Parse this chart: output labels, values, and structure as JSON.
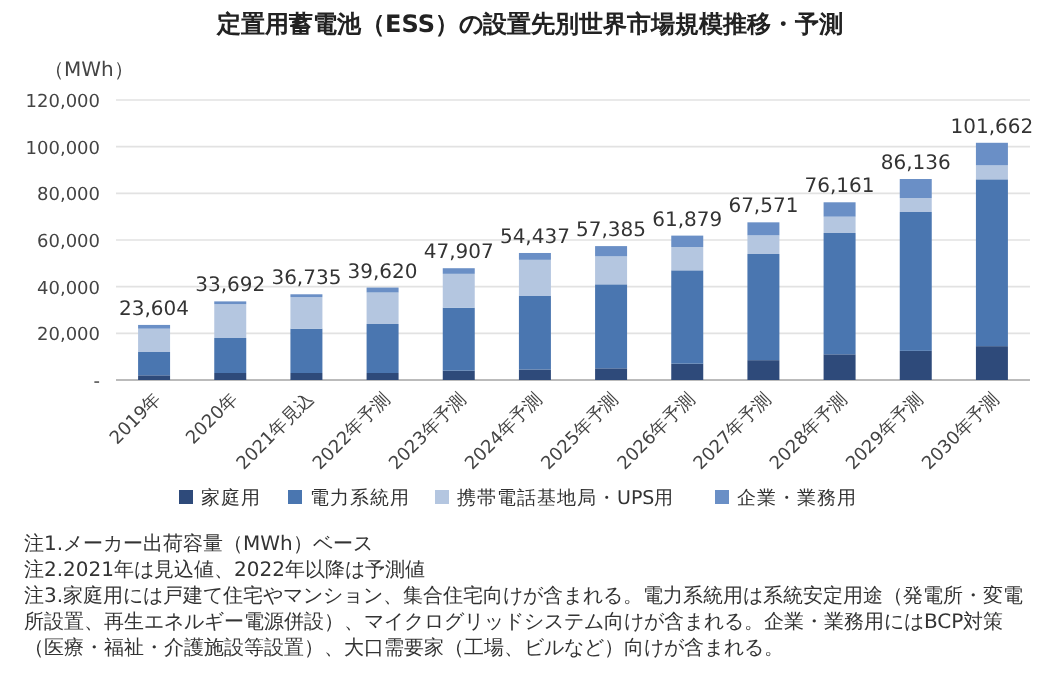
{
  "chart_data": {
    "type": "bar",
    "title": "定置用蓄電池（ESS）の設置先別世界市場規模推移・予測",
    "ylabel": "（MWh）",
    "stacked": true,
    "grid": "y",
    "legend": "bottom",
    "categories": [
      "2019年",
      "2020年",
      "2021年見込",
      "2022年予測",
      "2023年予測",
      "2024年予測",
      "2025年予測",
      "2026年予測",
      "2027年予測",
      "2028年予測",
      "2029年予測",
      "2030年予測"
    ],
    "ylim": [
      0,
      120000
    ],
    "yticks": [
      {
        "value": 0,
        "label": "-"
      },
      {
        "value": 20000,
        "label": "20,000"
      },
      {
        "value": 40000,
        "label": "40,000"
      },
      {
        "value": 60000,
        "label": "60,000"
      },
      {
        "value": 80000,
        "label": "80,000"
      },
      {
        "value": 100000,
        "label": "100,000"
      },
      {
        "value": 120000,
        "label": "120,000"
      }
    ],
    "series": [
      {
        "name": "家庭用",
        "color": "#2e4a7a",
        "values": [
          2000,
          3000,
          3000,
          3000,
          4000,
          4500,
          5000,
          7000,
          8500,
          11000,
          12500,
          14500
        ]
      },
      {
        "name": "電力系統用",
        "color": "#4a76b0",
        "values": [
          10000,
          15000,
          19000,
          21000,
          27000,
          31500,
          36000,
          40000,
          45500,
          52000,
          59500,
          71500
        ]
      },
      {
        "name": "携帯電話基地局・UPS用",
        "color": "#b4c6e0",
        "values": [
          10000,
          14500,
          13500,
          13500,
          14500,
          15500,
          12000,
          10000,
          8000,
          7000,
          6000,
          6000
        ]
      },
      {
        "name": "企業・業務用",
        "color": "#6a8fc6",
        "values": [
          1604,
          1192,
          1235,
          2120,
          2407,
          2937,
          4385,
          4879,
          5571,
          6161,
          8136,
          9662
        ]
      }
    ],
    "totals": [
      "23,604",
      "33,692",
      "36,735",
      "39,620",
      "47,907",
      "54,437",
      "57,385",
      "61,879",
      "67,571",
      "76,161",
      "86,136",
      "101,662"
    ],
    "annotations": [
      "注1.メーカー出荷容量（MWh）ベース",
      "注2.2021年は見込値、2022年以降は予測値",
      "注3.家庭用には戸建て住宅やマンション、集合住宅向けが含まれる。電力系統用は系統安定用途（発電所・変電所設置、再生エネルギー電源併設）、マイクログリッドシステム向けが含まれる。企業・業務用にはBCP対策（医療・福祉・介護施設等設置）、大口需要家（工場、ビルなど）向けが含まれる。"
    ]
  }
}
